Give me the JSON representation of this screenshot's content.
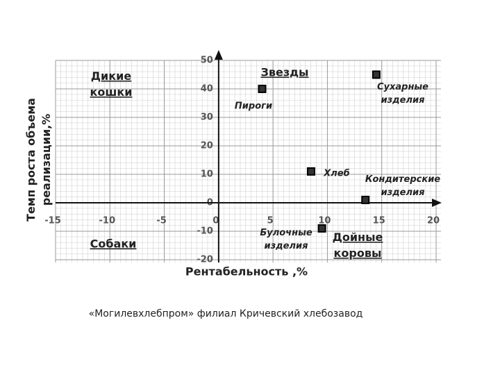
{
  "chart_data": {
    "type": "scatter",
    "xlabel": "Рентабельность ,%",
    "ylabel": "Темп роста объема реализации,%",
    "caption": "«Могилевхлебпром» филиал Кричевский хлебозавод",
    "quadrants": [
      "Дикие кошки",
      "Звезды",
      "Собаки",
      "Дойные коровы"
    ],
    "labels": [
      "Пироги",
      "Сухарные изделия",
      "Хлеб",
      "Кондитерские изделия",
      "Булочные изделия"
    ],
    "x": [
      4,
      14.5,
      8.5,
      13.5,
      9.5
    ],
    "values": [
      40,
      45,
      11,
      1,
      -9
    ],
    "color": "#333333",
    "xlim": [
      -15,
      20
    ],
    "ylim": [
      -20,
      50
    ],
    "xticks": [
      -15,
      -10,
      -5,
      0,
      5,
      10,
      15,
      20
    ],
    "yticks": [
      -20,
      -10,
      0,
      10,
      20,
      30,
      40,
      50
    ],
    "grid": true
  }
}
